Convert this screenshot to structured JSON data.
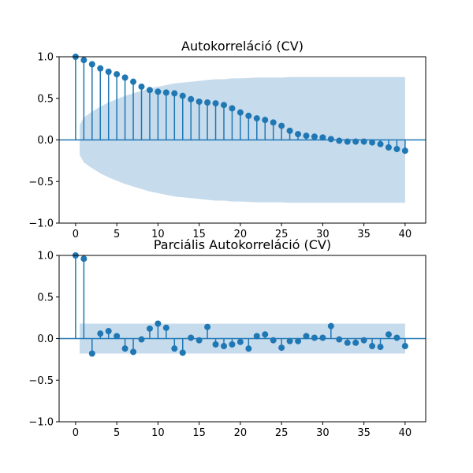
{
  "chart_data": [
    {
      "type": "stem",
      "title": "Autokorreláció (CV)",
      "xlabel": "",
      "ylabel": "",
      "xlim": [
        -2,
        42.5
      ],
      "ylim": [
        -1.0,
        1.0
      ],
      "xticks": [
        "0",
        "5",
        "10",
        "15",
        "20",
        "25",
        "30",
        "35",
        "40"
      ],
      "yticks": [
        "1.0",
        "0.5",
        "0.0",
        "−0.5",
        "−1.0"
      ],
      "grid": false,
      "marker_color": "#1f77b4",
      "band_color": "#c6dbec",
      "lags": [
        0,
        1,
        2,
        3,
        4,
        5,
        6,
        7,
        8,
        9,
        10,
        11,
        12,
        13,
        14,
        15,
        16,
        17,
        18,
        19,
        20,
        21,
        22,
        23,
        24,
        25,
        26,
        27,
        28,
        29,
        30,
        31,
        32,
        33,
        34,
        35,
        36,
        37,
        38,
        39,
        40
      ],
      "values": [
        1.0,
        0.96,
        0.91,
        0.86,
        0.82,
        0.79,
        0.75,
        0.7,
        0.64,
        0.6,
        0.58,
        0.57,
        0.56,
        0.53,
        0.49,
        0.46,
        0.45,
        0.44,
        0.42,
        0.38,
        0.33,
        0.29,
        0.26,
        0.24,
        0.21,
        0.17,
        0.11,
        0.07,
        0.05,
        0.04,
        0.03,
        0.01,
        -0.01,
        -0.02,
        -0.02,
        -0.02,
        -0.03,
        -0.05,
        -0.09,
        -0.11,
        -0.13
      ],
      "conf_band_lags": [
        0.5,
        1,
        2,
        3,
        4,
        5,
        6,
        7,
        8,
        9,
        10,
        11,
        12,
        13,
        14,
        15,
        16,
        17,
        18,
        19,
        20,
        21,
        22,
        23,
        24,
        25,
        26,
        27,
        28,
        29,
        30,
        31,
        32,
        33,
        34,
        35,
        36,
        37,
        38,
        39,
        40
      ],
      "conf_band": [
        0.18,
        0.27,
        0.34,
        0.4,
        0.45,
        0.49,
        0.53,
        0.56,
        0.59,
        0.62,
        0.64,
        0.66,
        0.68,
        0.69,
        0.7,
        0.71,
        0.72,
        0.73,
        0.73,
        0.74,
        0.74,
        0.745,
        0.75,
        0.75,
        0.75,
        0.75,
        0.755,
        0.755,
        0.755,
        0.755,
        0.755,
        0.755,
        0.755,
        0.755,
        0.755,
        0.755,
        0.755,
        0.755,
        0.755,
        0.755,
        0.755
      ]
    },
    {
      "type": "stem",
      "title": "Parciális Autokorreláció (CV)",
      "xlabel": "",
      "ylabel": "",
      "xlim": [
        -2,
        42.5
      ],
      "ylim": [
        -1.0,
        1.0
      ],
      "xticks": [
        "0",
        "5",
        "10",
        "15",
        "20",
        "25",
        "30",
        "35",
        "40"
      ],
      "yticks": [
        "1.0",
        "0.5",
        "0.0",
        "−0.5",
        "−1.0"
      ],
      "grid": false,
      "marker_color": "#1f77b4",
      "band_color": "#c6dbec",
      "lags": [
        0,
        1,
        2,
        3,
        4,
        5,
        6,
        7,
        8,
        9,
        10,
        11,
        12,
        13,
        14,
        15,
        16,
        17,
        18,
        19,
        20,
        21,
        22,
        23,
        24,
        25,
        26,
        27,
        28,
        29,
        30,
        31,
        32,
        33,
        34,
        35,
        36,
        37,
        38,
        39,
        40
      ],
      "values": [
        1.0,
        0.96,
        -0.18,
        0.06,
        0.09,
        0.03,
        -0.12,
        -0.16,
        -0.01,
        0.12,
        0.18,
        0.13,
        -0.12,
        -0.17,
        0.01,
        -0.02,
        0.14,
        -0.07,
        -0.09,
        -0.07,
        -0.04,
        -0.12,
        0.03,
        0.05,
        -0.02,
        -0.11,
        -0.03,
        -0.03,
        0.03,
        0.01,
        0.01,
        0.15,
        -0.01,
        -0.05,
        -0.05,
        -0.02,
        -0.09,
        -0.1,
        0.05,
        0.01,
        -0.09
      ],
      "conf_band_lags": [
        0.5,
        40
      ],
      "conf_band": [
        0.18,
        0.18
      ]
    }
  ]
}
